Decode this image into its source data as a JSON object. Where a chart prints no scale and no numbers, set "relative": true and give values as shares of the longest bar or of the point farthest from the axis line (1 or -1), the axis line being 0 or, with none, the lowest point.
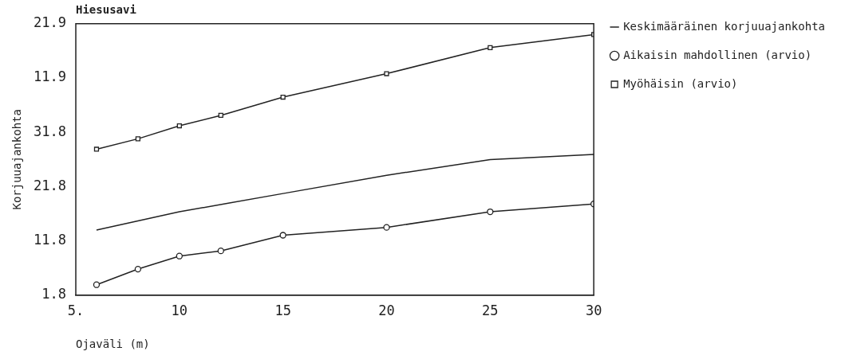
{
  "chart_data": {
    "type": "line",
    "title": "Hiesusavi",
    "xlabel": "Ojaväli (m)",
    "ylabel": "Korjuuajankohta",
    "annotations": [
      "1.8",
      "11.8",
      "21.8",
      "31.8",
      "11.9",
      "21.9"
    ],
    "x": [
      6,
      8,
      10,
      12,
      15,
      20,
      25,
      30
    ],
    "xlim": [
      5,
      30
    ],
    "xticks": [
      {
        "value": 5,
        "label": "5."
      },
      10,
      15,
      20,
      25,
      30
    ],
    "relative": true,
    "grid": false,
    "legend": "right",
    "line_style": "solid",
    "series": [
      {
        "name": "Keskimääräinen korjuuajankohta",
        "color": "#222222",
        "marker": "none",
        "x": [
          6,
          10,
          15,
          20,
          25,
          30
        ],
        "values": [
          0.25,
          0.32,
          0.39,
          0.46,
          0.52,
          0.54
        ]
      },
      {
        "name": "Aikaisin mahdollinen (arvio)",
        "color": "#222222",
        "marker": "circle",
        "values": [
          0.04,
          0.1,
          0.15,
          0.17,
          0.23,
          0.26,
          0.32,
          0.35
        ]
      },
      {
        "name": "Myöhäisin (arvio)",
        "color": "#222222",
        "marker": "square",
        "values": [
          0.56,
          0.6,
          0.65,
          0.69,
          0.76,
          0.85,
          0.95,
          1
        ]
      }
    ]
  }
}
